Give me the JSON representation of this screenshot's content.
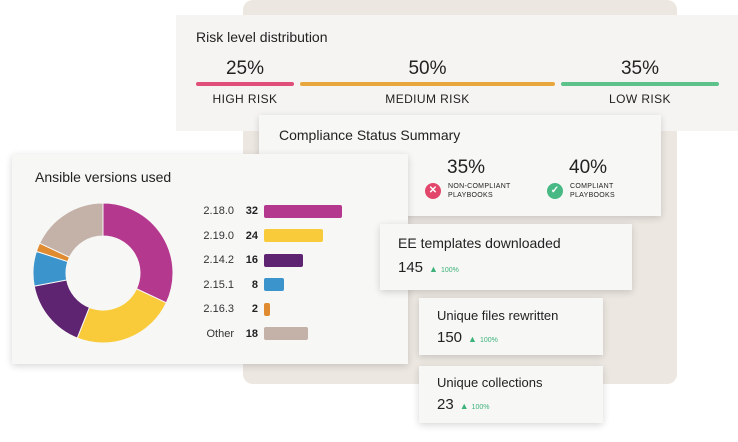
{
  "colors": {
    "high": "#e04f7a",
    "medium": "#e8a73c",
    "low": "#5cc28a",
    "noncompliant": "#e2476b",
    "compliant": "#48b884",
    "delta": "#3db37a"
  },
  "risk": {
    "title": "Risk level distribution",
    "segments": [
      {
        "pct": "25%",
        "label": "HIGH RISK",
        "share": 0.25
      },
      {
        "pct": "50%",
        "label": "MEDIUM RISK",
        "share": 0.5
      },
      {
        "pct": "35%",
        "label": "LOW RISK",
        "share": 0.35
      }
    ]
  },
  "compliance": {
    "title": "Compliance Status Summary",
    "noncompliant": {
      "pct": "35%",
      "label": "NON-COMPLIANT PLAYBOOKS",
      "icon": "x-circle-icon"
    },
    "compliant": {
      "pct": "40%",
      "label": "COMPLIANT PLAYBOOKS",
      "icon": "check-circle-icon"
    }
  },
  "ansible": {
    "title": "Ansible versions used",
    "versions": [
      {
        "version": "2.18.0",
        "count": "32",
        "color": "#b5388f"
      },
      {
        "version": "2.19.0",
        "count": "24",
        "color": "#f9cb3a"
      },
      {
        "version": "2.14.2",
        "count": "16",
        "color": "#5e2371"
      },
      {
        "version": "2.15.1",
        "count": "8",
        "color": "#3b94cc"
      },
      {
        "version": "2.16.3",
        "count": "2",
        "color": "#e08b2f"
      },
      {
        "version": "Other",
        "count": "18",
        "color": "#c4b1a8"
      }
    ]
  },
  "metrics": {
    "ee": {
      "title": "EE templates downloaded",
      "value": "145",
      "delta": "100%"
    },
    "files": {
      "title": "Unique files rewritten",
      "value": "150",
      "delta": "100%"
    },
    "collections": {
      "title": "Unique collections",
      "value": "23",
      "delta": "100%"
    }
  }
}
